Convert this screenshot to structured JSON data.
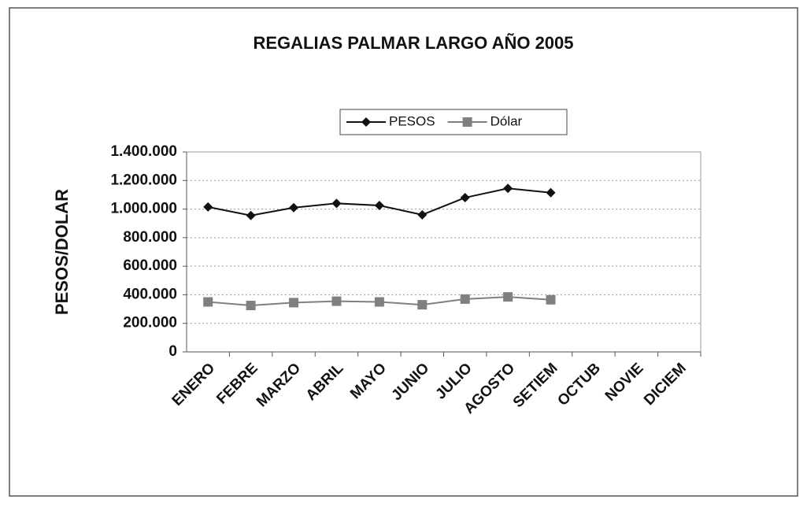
{
  "chart_data": {
    "type": "line",
    "title": "REGALIAS PALMAR LARGO AÑO 2005",
    "y_label": "PESOS/DOLAR",
    "categories": [
      "ENERO",
      "FEBRE",
      "MARZO",
      "ABRIL",
      "MAYO",
      "JUNIO",
      "JULIO",
      "AGOSTO",
      "SETIEM",
      "OCTUB",
      "NOVIE",
      "DICIEM"
    ],
    "series": [
      {
        "name": "PESOS",
        "color": "#111111",
        "marker": "diamond",
        "values": [
          1015000,
          955000,
          1010000,
          1040000,
          1025000,
          960000,
          1080000,
          1145000,
          1115000,
          null,
          null,
          null
        ]
      },
      {
        "name": "Dólar",
        "color": "#808080",
        "marker": "square",
        "values": [
          350000,
          325000,
          345000,
          355000,
          350000,
          330000,
          370000,
          385000,
          365000,
          null,
          null,
          null
        ]
      }
    ],
    "ylim": [
      0,
      1400000
    ],
    "yticks": [
      0,
      {
        "value": 200000,
        "label": "200.000"
      },
      {
        "value": 400000,
        "label": "400.000"
      },
      {
        "value": 600000,
        "label": "600.000"
      },
      {
        "value": 800000,
        "label": "800.000"
      },
      {
        "value": 1000000,
        "label": "1.000.000"
      },
      {
        "value": 1200000,
        "label": "1.200.000"
      },
      {
        "value": 1400000,
        "label": "1.400.000"
      }
    ],
    "grid": true,
    "legend": "top"
  }
}
